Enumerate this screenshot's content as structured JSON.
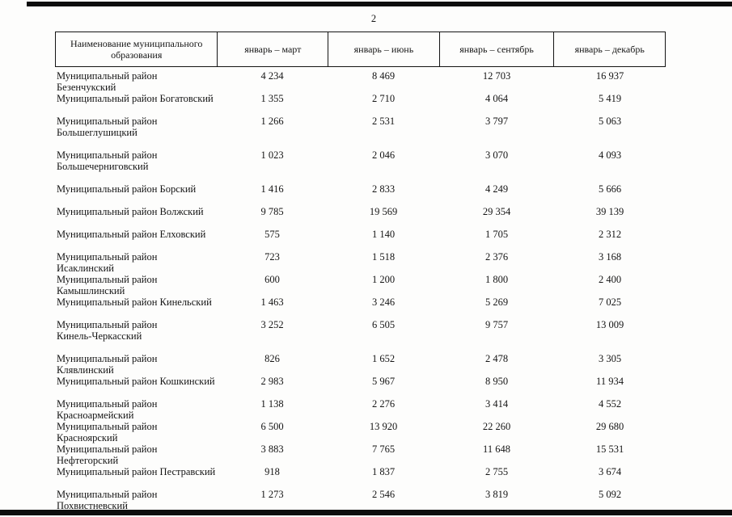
{
  "page": {
    "number": "2"
  },
  "colors": {
    "ink": "#151515",
    "paper": "#fdfdfc"
  },
  "table": {
    "header": {
      "name_line1": "Наименование муниципального",
      "name_line2": "образования",
      "periods": [
        "январь – март",
        "январь – июнь",
        "январь – сентябрь",
        "январь – декабрь"
      ]
    },
    "rows": [
      {
        "name_line1": "Муниципальный район Безенчукский",
        "name_line2": "",
        "values": [
          "4 234",
          "8 469",
          "12 703",
          "16 937"
        ]
      },
      {
        "name_line1": "Муниципальный район Богатовский",
        "name_line2": "",
        "values": [
          "1 355",
          "2 710",
          "4 064",
          "5 419"
        ]
      },
      {
        "name_line1": "Муниципальный район",
        "name_line2": "Большеглушицкий",
        "values": [
          "1 266",
          "2 531",
          "3 797",
          "5 063"
        ]
      },
      {
        "name_line1": "Муниципальный район",
        "name_line2": "Большечерниговский",
        "values": [
          "1 023",
          "2 046",
          "3 070",
          "4 093"
        ]
      },
      {
        "name_line1": "Муниципальный район Борский",
        "name_line2": "",
        "values": [
          "1 416",
          "2 833",
          "4 249",
          "5 666"
        ]
      },
      {
        "name_line1": "Муниципальный район Волжский",
        "name_line2": "",
        "values": [
          "9 785",
          "19 569",
          "29 354",
          "39 139"
        ]
      },
      {
        "name_line1": "Муниципальный район Елховский",
        "name_line2": "",
        "values": [
          "575",
          "1 140",
          "1 705",
          "2 312"
        ]
      },
      {
        "name_line1": "Муниципальный район Исаклинский",
        "name_line2": "",
        "values": [
          "723",
          "1 518",
          "2 376",
          "3 168"
        ]
      },
      {
        "name_line1": "Муниципальный район Камышлинский",
        "name_line2": "",
        "values": [
          "600",
          "1 200",
          "1 800",
          "2 400"
        ]
      },
      {
        "name_line1": "Муниципальный район Кинельский",
        "name_line2": "",
        "values": [
          "1 463",
          "3 246",
          "5 269",
          "7 025"
        ]
      },
      {
        "name_line1": "Муниципальный район",
        "name_line2": "Кинель-Черкасский",
        "values": [
          "3 252",
          "6 505",
          "9 757",
          "13 009"
        ]
      },
      {
        "name_line1": "Муниципальный район Клявлинский",
        "name_line2": "",
        "values": [
          "826",
          "1 652",
          "2 478",
          "3 305"
        ]
      },
      {
        "name_line1": "Муниципальный район Кошкинский",
        "name_line2": "",
        "values": [
          "2 983",
          "5 967",
          "8 950",
          "11 934"
        ]
      },
      {
        "name_line1": "Муниципальный район Красноармейский",
        "name_line2": "",
        "values": [
          "1 138",
          "2 276",
          "3 414",
          "4 552"
        ]
      },
      {
        "name_line1": "Муниципальный район Красноярский",
        "name_line2": "",
        "values": [
          "6 500",
          "13 920",
          "22 260",
          "29 680"
        ]
      },
      {
        "name_line1": "Муниципальный район Нефтегорский",
        "name_line2": "",
        "values": [
          "3 883",
          "7 765",
          "11 648",
          "15 531"
        ]
      },
      {
        "name_line1": "Муниципальный район Пестравский",
        "name_line2": "",
        "values": [
          "918",
          "1 837",
          "2 755",
          "3 674"
        ]
      },
      {
        "name_line1": "Муниципальный район Похвистневский",
        "name_line2": "",
        "values": [
          "1 273",
          "2 546",
          "3 819",
          "5 092"
        ]
      }
    ]
  }
}
